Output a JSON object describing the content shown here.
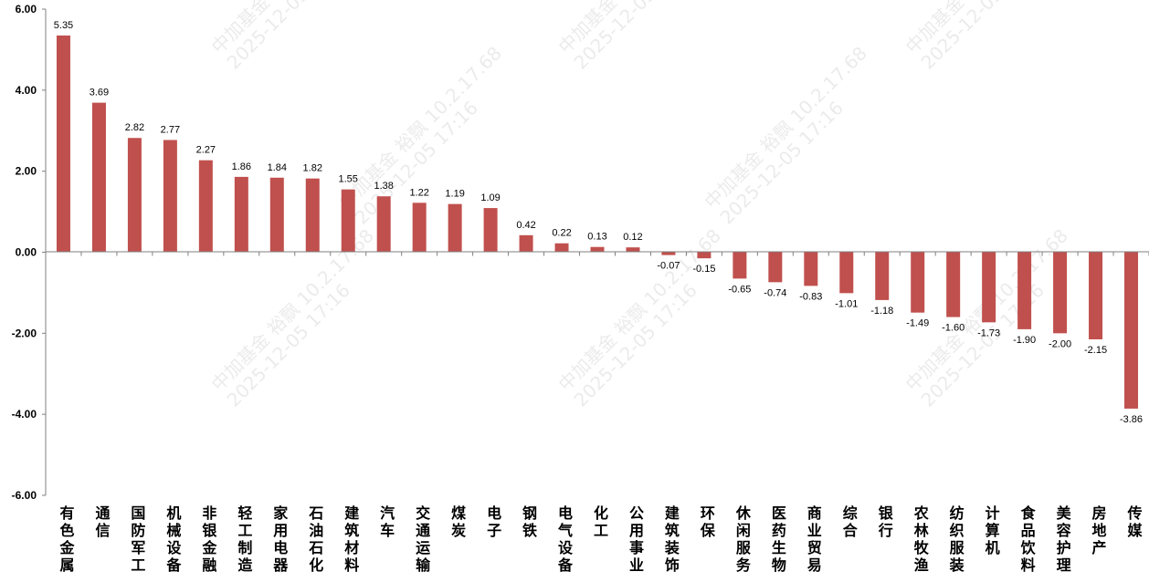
{
  "chart_data": {
    "type": "bar",
    "categories": [
      "有色金属",
      "通信",
      "国防军工",
      "机械设备",
      "非银金融",
      "轻工制造",
      "家用电器",
      "石油石化",
      "建筑材料",
      "汽车",
      "交通运输",
      "煤炭",
      "电子",
      "钢铁",
      "电气设备",
      "化工",
      "公用事业",
      "建筑装饰",
      "环保",
      "休闲服务",
      "医药生物",
      "商业贸易",
      "综合",
      "银行",
      "农林牧渔",
      "纺织服装",
      "计算机",
      "食品饮料",
      "美容护理",
      "房地产",
      "传媒"
    ],
    "values": [
      5.35,
      3.69,
      2.82,
      2.77,
      2.27,
      1.86,
      1.84,
      1.82,
      1.55,
      1.38,
      1.22,
      1.19,
      1.09,
      0.42,
      0.22,
      0.13,
      0.12,
      -0.07,
      -0.15,
      -0.65,
      -0.74,
      -0.83,
      -1.01,
      -1.18,
      -1.49,
      -1.6,
      -1.73,
      -1.9,
      -2.0,
      -2.15,
      -3.86
    ],
    "value_labels": [
      "5.35",
      "3.69",
      "2.82",
      "2.77",
      "2.27",
      "1.86",
      "1.84",
      "1.82",
      "1.55",
      "1.38",
      "1.22",
      "1.19",
      "1.09",
      "0.42",
      "0.22",
      "0.13",
      "0.12",
      "-0.07",
      "-0.15",
      "-0.65",
      "-0.74",
      "-0.83",
      "-1.01",
      "-1.18",
      "-1.49",
      "-1.60",
      "-1.73",
      "-1.90",
      "-2.00",
      "-2.15",
      "-3.86"
    ],
    "ylim": [
      -6,
      6
    ],
    "yticks": [
      "6.00",
      "4.00",
      "2.00",
      "0.00",
      "-2.00",
      "-4.00",
      "-6.00"
    ],
    "ytick_values": [
      6,
      4,
      2,
      0,
      -2,
      -4,
      -6
    ],
    "bar_color": "#c0504d",
    "grid": false,
    "legend": "none",
    "title": "",
    "xlabel": "",
    "ylabel": ""
  },
  "watermark": {
    "line1": "中加基金 裕飘 10.2.17.68",
    "line2": "2025-12-05 17:16"
  }
}
